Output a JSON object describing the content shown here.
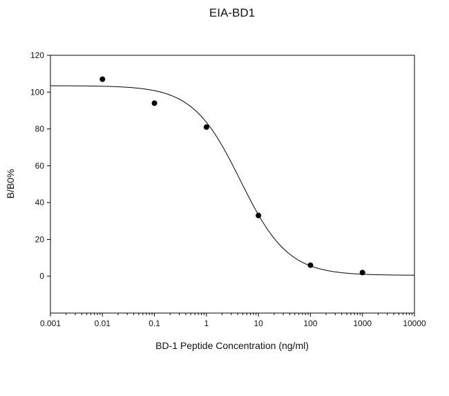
{
  "chart_data": {
    "type": "scatter",
    "title": "EIA-BD1",
    "xlabel": "BD-1 Peptide Concentration (ng/ml)",
    "ylabel": "B/B0%",
    "x_scale": "log",
    "xlim": [
      0.001,
      10000
    ],
    "ylim": [
      -20,
      120
    ],
    "x_ticks": [
      0.001,
      0.01,
      0.1,
      1,
      10,
      100,
      1000,
      10000
    ],
    "x_tick_labels": [
      "0.001",
      "0.01",
      "0.1",
      "1",
      "10",
      "100",
      "1000",
      "10000"
    ],
    "y_ticks": [
      0,
      20,
      40,
      60,
      80,
      100,
      120
    ],
    "y_tick_labels": [
      "0",
      "20",
      "40",
      "60",
      "80",
      "100",
      "120"
    ],
    "grid": false,
    "series": [
      {
        "type": "scatter",
        "x": [
          0.01,
          0.1,
          1,
          10,
          100,
          1000
        ],
        "y": [
          107,
          94,
          81,
          33,
          6,
          2
        ],
        "color": "#000000"
      },
      {
        "type": "line",
        "fit": "4PL",
        "params": {
          "top": 103.5,
          "bottom": 0.5,
          "ec50": 4.5,
          "hill": 0.95
        },
        "color": "#000000"
      }
    ]
  }
}
